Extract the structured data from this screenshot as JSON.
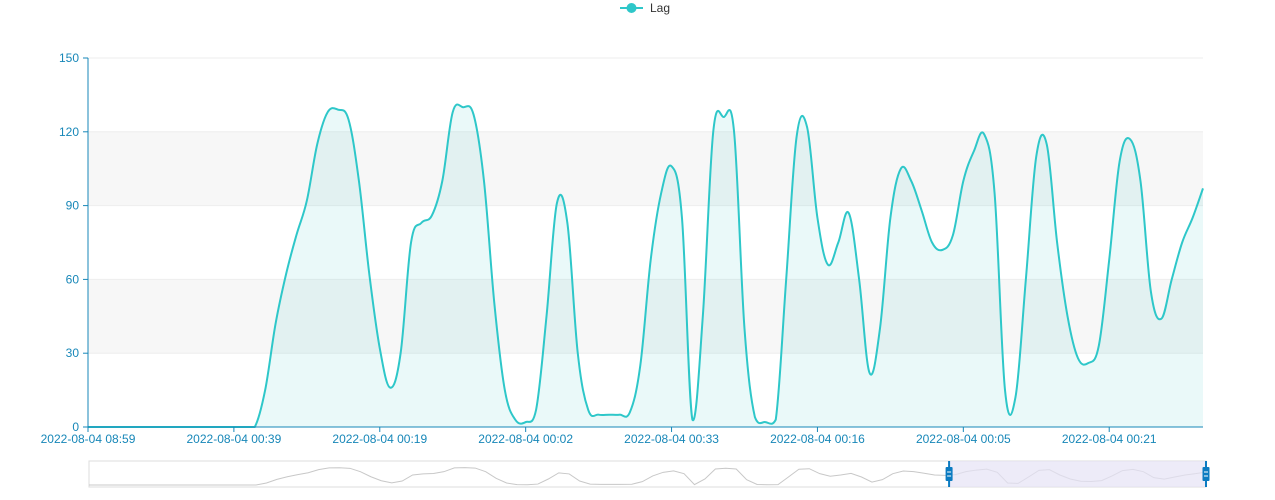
{
  "legend": {
    "label": "Lag"
  },
  "colors": {
    "series": "#2ec7c9",
    "axis": "#1787b8",
    "band": "#f7f7f7",
    "grid": "#eeeeee",
    "zoom_fill": "#e6e2f5",
    "zoom_handle": "#0b7bc1"
  },
  "chart_data": {
    "type": "area",
    "title": "",
    "xlabel": "",
    "ylabel": "",
    "ylim": [
      0,
      150
    ],
    "yticks": [
      0,
      30,
      60,
      90,
      120,
      150
    ],
    "legend_position": "top-center",
    "grid": true,
    "x_tick_labels": [
      "2022-08-04 08:59",
      "2022-08-04 00:39",
      "2022-08-04 00:19",
      "2022-08-04 00:02",
      "2022-08-04 00:33",
      "2022-08-04 00:16",
      "2022-08-04 00:05",
      "2022-08-04 00:21"
    ],
    "series": [
      {
        "name": "Lag",
        "values": [
          0,
          0,
          0,
          0,
          0,
          0,
          0,
          0,
          0,
          0,
          0,
          0,
          0,
          0,
          0,
          0,
          0,
          15,
          42,
          62,
          78,
          92,
          115,
          128,
          129,
          125,
          100,
          62,
          32,
          16,
          30,
          75,
          83,
          86,
          100,
          128,
          130,
          127,
          100,
          50,
          15,
          3,
          2,
          7,
          45,
          91,
          83,
          30,
          7,
          5,
          5,
          5,
          6,
          25,
          68,
          95,
          106,
          85,
          3,
          45,
          120,
          126,
          120,
          40,
          4,
          2,
          3,
          60,
          118,
          122,
          85,
          66,
          75,
          87,
          60,
          22,
          40,
          85,
          105,
          100,
          88,
          75,
          72,
          78,
          100,
          112,
          119,
          95,
          15,
          12,
          60,
          110,
          115,
          75,
          45,
          28,
          26,
          33,
          68,
          108,
          117,
          100,
          55,
          44,
          60,
          75,
          85,
          97
        ]
      }
    ],
    "data_zoom": {
      "start_percent": 77,
      "end_percent": 100
    }
  }
}
